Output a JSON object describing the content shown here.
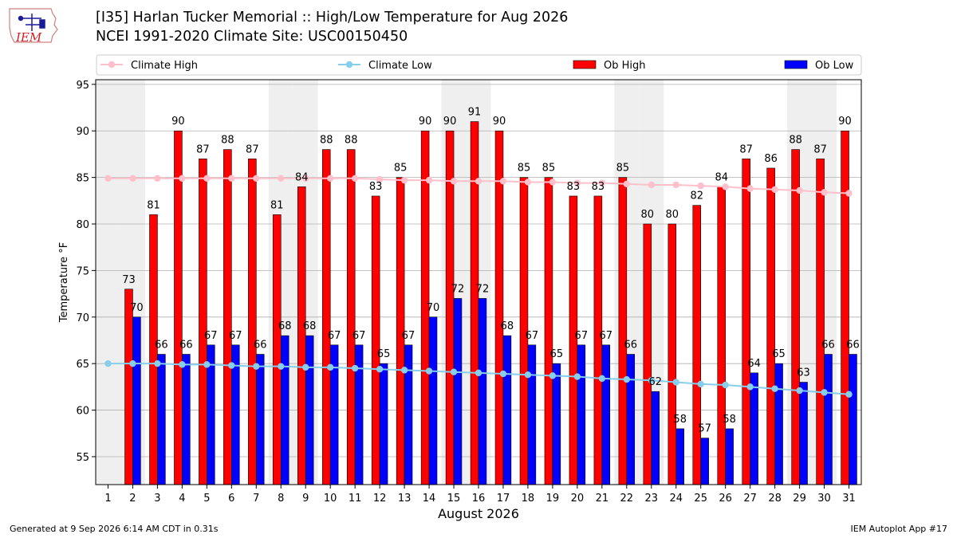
{
  "header": {
    "title_line1": "[I35] Harlan Tucker Memorial :: High/Low Temperature for Aug 2026",
    "title_line2": "NCEI 1991-2020 Climate Site: USC00150450",
    "logo_text": "IEM"
  },
  "footer": {
    "generated": "Generated at 9 Sep 2026 6:14 AM CDT in 0.31s",
    "app": "IEM Autoplot App #17"
  },
  "colors": {
    "ob_high": "#ff0000",
    "ob_low": "#0000ff",
    "climate_high": "#ffc0cb",
    "climate_low": "#87ceeb",
    "weekend_band": "#efefef",
    "grid": "#b0b0b0"
  },
  "chart_data": {
    "type": "bar",
    "xlabel": "August 2026",
    "ylabel": "Temperature °F",
    "ylim": [
      52,
      95.5
    ],
    "yticks": [
      55,
      60,
      65,
      70,
      75,
      80,
      85,
      90,
      95
    ],
    "grid": "horizontal",
    "legend_position": "top",
    "x": [
      1,
      2,
      3,
      4,
      5,
      6,
      7,
      8,
      9,
      10,
      11,
      12,
      13,
      14,
      15,
      16,
      17,
      18,
      19,
      20,
      21,
      22,
      23,
      24,
      25,
      26,
      27,
      28,
      29,
      30,
      31
    ],
    "shaded_days": [
      1,
      2,
      8,
      9,
      15,
      16,
      22,
      23,
      29,
      30
    ],
    "series": [
      {
        "name": "Climate High",
        "kind": "line",
        "values": [
          84.9,
          84.9,
          84.9,
          84.9,
          84.9,
          84.9,
          84.9,
          84.9,
          84.9,
          84.9,
          84.9,
          84.8,
          84.7,
          84.7,
          84.6,
          84.6,
          84.6,
          84.5,
          84.5,
          84.4,
          84.4,
          84.3,
          84.2,
          84.2,
          84.1,
          84.0,
          83.8,
          83.7,
          83.6,
          83.4,
          83.3
        ]
      },
      {
        "name": "Climate Low",
        "kind": "line",
        "values": [
          65.0,
          65.0,
          65.0,
          64.9,
          64.9,
          64.8,
          64.7,
          64.7,
          64.6,
          64.6,
          64.5,
          64.4,
          64.3,
          64.2,
          64.1,
          64.0,
          63.9,
          63.8,
          63.7,
          63.6,
          63.4,
          63.3,
          63.2,
          63.0,
          62.8,
          62.7,
          62.5,
          62.3,
          62.1,
          61.9,
          61.7
        ]
      },
      {
        "name": "Ob High",
        "kind": "bar",
        "values": [
          null,
          73,
          81,
          90,
          87,
          88,
          87,
          81,
          84,
          88,
          88,
          83,
          85,
          90,
          90,
          91,
          90,
          85,
          85,
          83,
          83,
          85,
          80,
          80,
          82,
          84,
          87,
          86,
          88,
          87,
          90
        ]
      },
      {
        "name": "Ob Low",
        "kind": "bar",
        "values": [
          null,
          70,
          66,
          66,
          67,
          67,
          66,
          68,
          68,
          67,
          67,
          65,
          67,
          70,
          72,
          72,
          68,
          67,
          65,
          67,
          67,
          66,
          62,
          58,
          57,
          58,
          64,
          65,
          63,
          66,
          66
        ]
      }
    ]
  }
}
